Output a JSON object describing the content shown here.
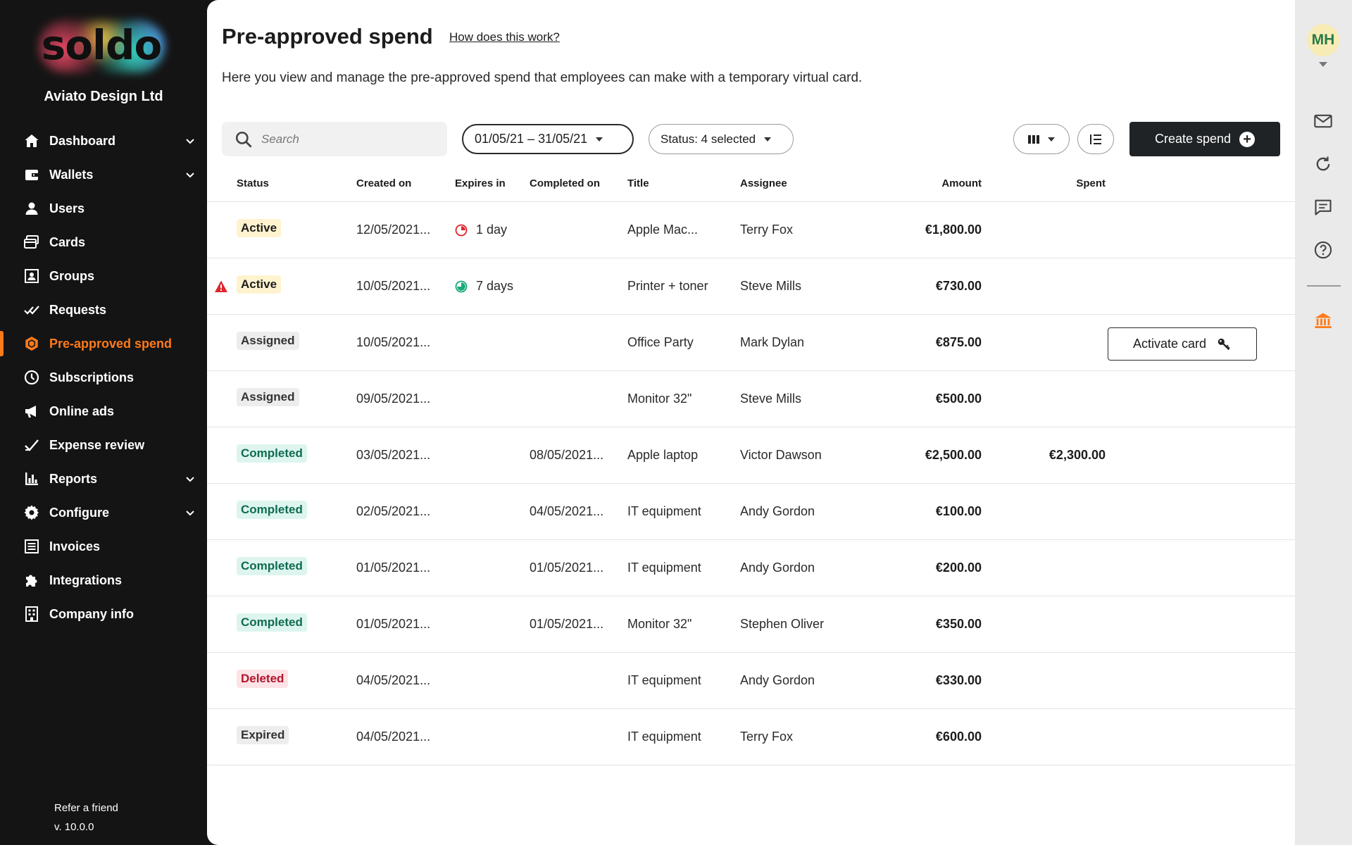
{
  "brand": {
    "logo_text": "soldo",
    "company": "Aviato Design Ltd"
  },
  "nav": [
    {
      "label": "Dashboard",
      "icon": "home-icon",
      "has_submenu": true
    },
    {
      "label": "Wallets",
      "icon": "wallet-icon",
      "has_submenu": true
    },
    {
      "label": "Users",
      "icon": "user-icon",
      "has_submenu": false
    },
    {
      "label": "Cards",
      "icon": "cards-icon",
      "has_submenu": false
    },
    {
      "label": "Groups",
      "icon": "groups-icon",
      "has_submenu": false
    },
    {
      "label": "Requests",
      "icon": "requests-icon",
      "has_submenu": false
    },
    {
      "label": "Pre-approved spend",
      "icon": "hexagon-icon",
      "has_submenu": false,
      "active": true
    },
    {
      "label": "Subscriptions",
      "icon": "clock-icon",
      "has_submenu": false
    },
    {
      "label": "Online ads",
      "icon": "megaphone-icon",
      "has_submenu": false
    },
    {
      "label": "Expense review",
      "icon": "check-icon",
      "has_submenu": false
    },
    {
      "label": "Reports",
      "icon": "bar-chart-icon",
      "has_submenu": true
    },
    {
      "label": "Configure",
      "icon": "gear-icon",
      "has_submenu": true
    },
    {
      "label": "Invoices",
      "icon": "invoice-icon",
      "has_submenu": false
    },
    {
      "label": "Integrations",
      "icon": "puzzle-icon",
      "has_submenu": false
    },
    {
      "label": "Company info",
      "icon": "building-icon",
      "has_submenu": false
    }
  ],
  "footer": {
    "refer": "Refer a friend",
    "version": "v. 10.0.0"
  },
  "header": {
    "title": "Pre-approved spend",
    "help_link": "How does this work?",
    "subtitle": "Here you view and manage the pre-approved spend that employees can make with a temporary virtual card."
  },
  "toolbar": {
    "search_placeholder": "Search",
    "date_range": "01/05/21 – 31/05/21",
    "status_filter": "Status: 4 selected",
    "create_label": "Create spend"
  },
  "columns": {
    "status": "Status",
    "created": "Created on",
    "expires": "Expires in",
    "completed": "Completed on",
    "title": "Title",
    "assignee": "Assignee",
    "amount": "Amount",
    "spent": "Spent"
  },
  "rows": [
    {
      "status": "Active",
      "status_type": "active",
      "warning": false,
      "created": "12/05/2021...",
      "expires": "1 day",
      "expires_icon": "red",
      "completed": "",
      "title": "Apple Mac...",
      "assignee": "Terry Fox",
      "amount": "€1,800.00",
      "spent": "",
      "action": ""
    },
    {
      "status": "Active",
      "status_type": "active",
      "warning": true,
      "created": "10/05/2021...",
      "expires": "7 days",
      "expires_icon": "green",
      "completed": "",
      "title": "Printer + toner",
      "assignee": "Steve Mills",
      "amount": "€730.00",
      "spent": "",
      "action": ""
    },
    {
      "status": "Assigned",
      "status_type": "assigned",
      "warning": false,
      "created": "10/05/2021...",
      "expires": "",
      "expires_icon": "",
      "completed": "",
      "title": "Office Party",
      "assignee": "Mark Dylan",
      "amount": "€875.00",
      "spent": "",
      "action": "Activate card"
    },
    {
      "status": "Assigned",
      "status_type": "assigned",
      "warning": false,
      "created": "09/05/2021...",
      "expires": "",
      "expires_icon": "",
      "completed": "",
      "title": "Monitor 32\"",
      "assignee": "Steve Mills",
      "amount": "€500.00",
      "spent": "",
      "action": ""
    },
    {
      "status": "Completed",
      "status_type": "completed",
      "warning": false,
      "created": "03/05/2021...",
      "expires": "",
      "expires_icon": "",
      "completed": "08/05/2021...",
      "title": "Apple laptop",
      "assignee": "Victor Dawson",
      "amount": "€2,500.00",
      "spent": "€2,300.00",
      "action": ""
    },
    {
      "status": "Completed",
      "status_type": "completed",
      "warning": false,
      "created": "02/05/2021...",
      "expires": "",
      "expires_icon": "",
      "completed": "04/05/2021...",
      "title": "IT equipment",
      "assignee": "Andy Gordon",
      "amount": "€100.00",
      "spent": "",
      "action": ""
    },
    {
      "status": "Completed",
      "status_type": "completed",
      "warning": false,
      "created": "01/05/2021...",
      "expires": "",
      "expires_icon": "",
      "completed": "01/05/2021...",
      "title": "IT equipment",
      "assignee": "Andy Gordon",
      "amount": "€200.00",
      "spent": "",
      "action": ""
    },
    {
      "status": "Completed",
      "status_type": "completed",
      "warning": false,
      "created": "01/05/2021...",
      "expires": "",
      "expires_icon": "",
      "completed": "01/05/2021...",
      "title": "Monitor 32\"",
      "assignee": "Stephen Oliver",
      "amount": "€350.00",
      "spent": "",
      "action": ""
    },
    {
      "status": "Deleted",
      "status_type": "deleted",
      "warning": false,
      "created": "04/05/2021...",
      "expires": "",
      "expires_icon": "",
      "completed": "",
      "title": "IT equipment",
      "assignee": "Andy Gordon",
      "amount": "€330.00",
      "spent": "",
      "action": ""
    },
    {
      "status": "Expired",
      "status_type": "expired",
      "warning": false,
      "created": "04/05/2021...",
      "expires": "",
      "expires_icon": "",
      "completed": "",
      "title": "IT equipment",
      "assignee": "Terry Fox",
      "amount": "€600.00",
      "spent": "",
      "action": ""
    }
  ],
  "user": {
    "initials": "MH"
  },
  "rail_icons": [
    "mail-icon",
    "refresh-icon",
    "chat-icon",
    "help-icon",
    "bank-icon"
  ],
  "colors": {
    "accent": "#ff7a1a",
    "dark": "#1f2326"
  }
}
